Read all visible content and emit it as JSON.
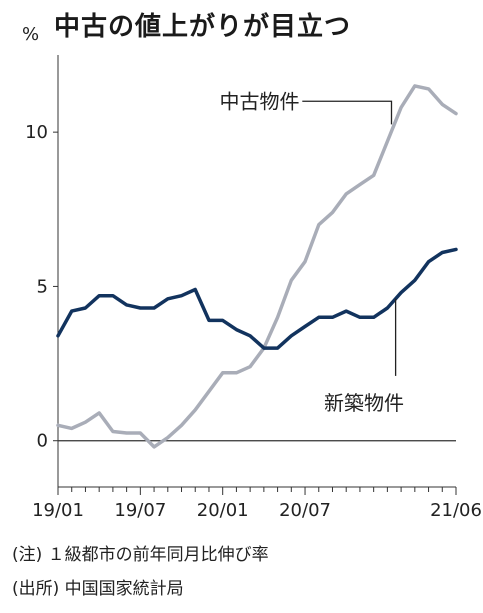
{
  "chart_data": {
    "type": "line",
    "title": "中古の値上がりが目立つ",
    "ylabel": "%",
    "ylim": [
      -1.5,
      12.5
    ],
    "yticks": [
      0,
      5,
      10
    ],
    "ytick_labels": [
      "0",
      "5",
      "10"
    ],
    "xlim": [
      0,
      29
    ],
    "xticks": [
      0,
      6,
      12,
      18,
      29
    ],
    "xtick_labels": [
      "19/01",
      "19/07",
      "20/01",
      "20/07",
      "21/06"
    ],
    "x": [
      "19/01",
      "19/02",
      "19/03",
      "19/04",
      "19/05",
      "19/06",
      "19/07",
      "19/08",
      "19/09",
      "19/10",
      "19/11",
      "19/12",
      "20/01",
      "20/02",
      "20/03",
      "20/04",
      "20/05",
      "20/06",
      "20/07",
      "20/08",
      "20/09",
      "20/10",
      "20/11",
      "20/12",
      "21/01",
      "21/02",
      "21/03",
      "21/04",
      "21/05",
      "21/06"
    ],
    "series": [
      {
        "name": "中古物件",
        "color": "#a9adb8",
        "values": [
          0.5,
          0.4,
          0.6,
          0.9,
          0.3,
          0.25,
          0.25,
          -0.2,
          0.1,
          0.5,
          1.0,
          1.6,
          2.2,
          2.2,
          2.4,
          3.0,
          4.0,
          5.2,
          5.8,
          7.0,
          7.4,
          8.0,
          8.3,
          8.6,
          9.7,
          10.8,
          11.5,
          11.4,
          10.9,
          10.6
        ]
      },
      {
        "name": "新築物件",
        "color": "#12335e",
        "values": [
          3.4,
          4.2,
          4.3,
          4.7,
          4.7,
          4.4,
          4.3,
          4.3,
          4.6,
          4.7,
          4.9,
          3.9,
          3.9,
          3.6,
          3.4,
          3.0,
          3.0,
          3.4,
          3.7,
          4.0,
          4.0,
          4.2,
          4.0,
          4.0,
          4.3,
          4.8,
          5.2,
          5.8,
          6.1,
          6.2
        ]
      }
    ]
  },
  "notes": [
    "(注) １級都市の前年同月比伸び率",
    "(出所) 中国国家統計局"
  ]
}
